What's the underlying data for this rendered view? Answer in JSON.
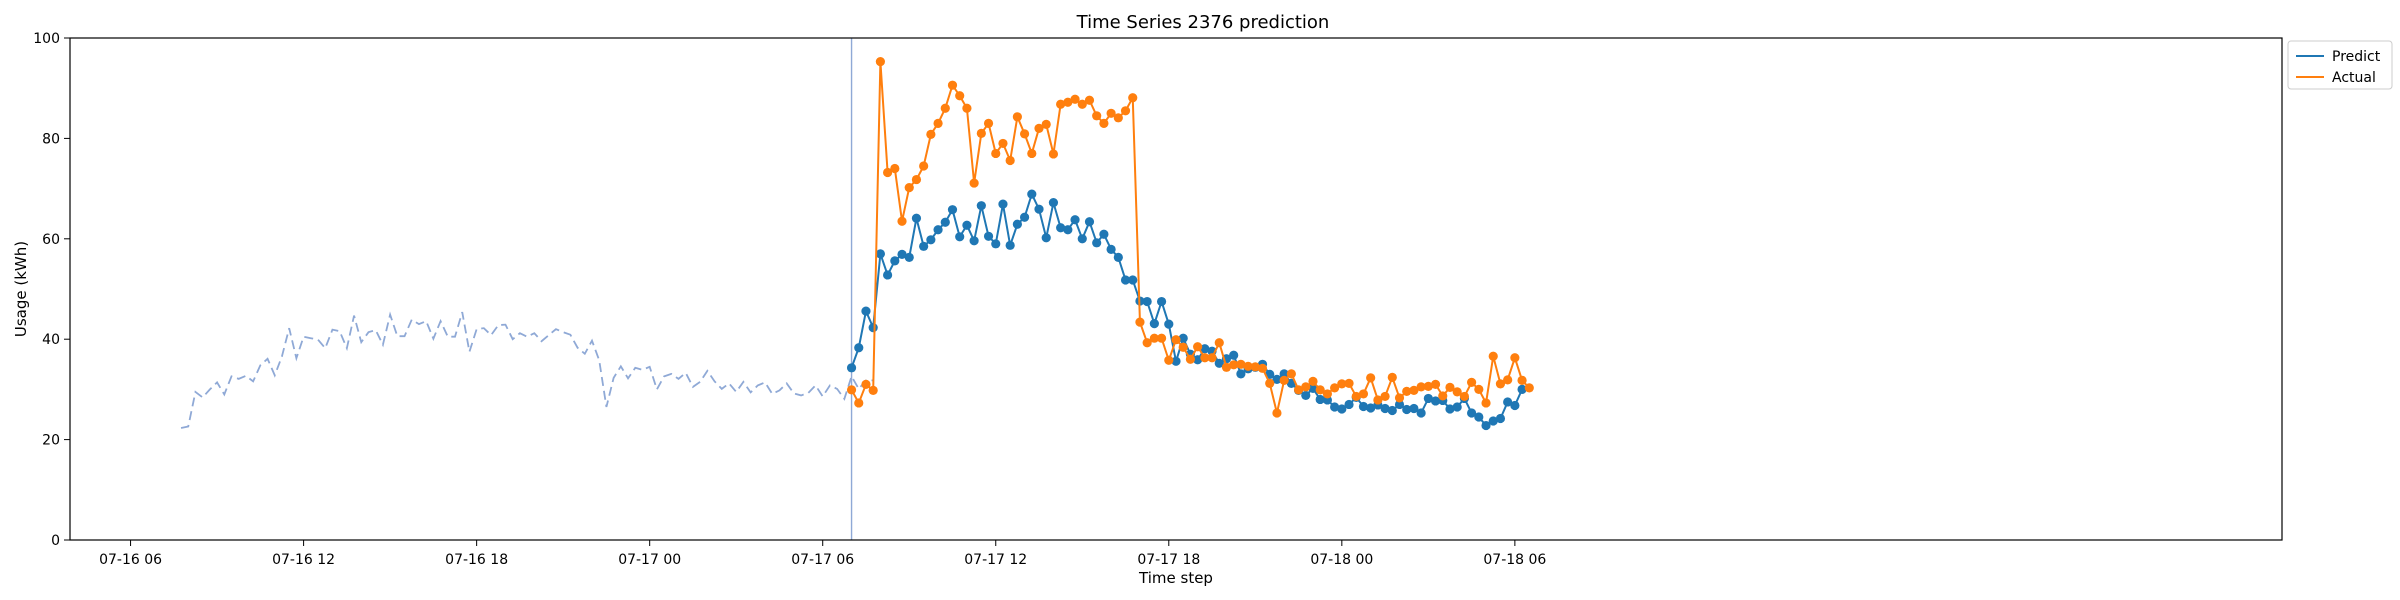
{
  "chart_data": {
    "type": "line",
    "title": "Time Series 2376 prediction",
    "xlabel": "Time step",
    "ylabel": "Usage (kWh)",
    "xlim": [
      -2.1,
      74.6
    ],
    "ylim": [
      0,
      100
    ],
    "x_unit": "hours since 07-16 06:00",
    "yticks": [
      0,
      20,
      40,
      60,
      80,
      100
    ],
    "xticks": [
      {
        "hours": 0,
        "label": "07-16 06"
      },
      {
        "hours": 6,
        "label": "07-16 12"
      },
      {
        "hours": 12,
        "label": "07-16 18"
      },
      {
        "hours": 18,
        "label": "07-17 00"
      },
      {
        "hours": 24,
        "label": "07-17 06"
      },
      {
        "hours": 30,
        "label": "07-17 12"
      },
      {
        "hours": 36,
        "label": "07-17 18"
      },
      {
        "hours": 42,
        "label": "07-18 00"
      },
      {
        "hours": 48,
        "label": "07-18 06"
      }
    ],
    "forecast_start_hours": 25,
    "grid": false,
    "legend": "outside-top-right",
    "colors": {
      "history": "#8fa9d6",
      "predict": "#1f77b4",
      "actual": "#ff7f0e",
      "vline": "#8fa9d6"
    },
    "history": {
      "name": "",
      "x_start": 1.75,
      "x_step": 0.25,
      "values": [
        22.3,
        22.6,
        29.5,
        28.4,
        30.0,
        31.4,
        29.0,
        32.6,
        32.1,
        32.7,
        31.6,
        34.8,
        36.1,
        32.8,
        36.6,
        42.2,
        36.2,
        40.5,
        40.2,
        39.9,
        38.2,
        41.9,
        41.6,
        38.2,
        44.7,
        39.4,
        41.4,
        41.8,
        38.9,
        44.9,
        40.6,
        40.6,
        43.9,
        43.0,
        43.6,
        40.1,
        43.6,
        40.5,
        40.5,
        45.4,
        37.5,
        42.0,
        42.2,
        40.8,
        42.8,
        42.9,
        40.0,
        41.2,
        40.5,
        41.2,
        39.6,
        40.8,
        42.0,
        41.4,
        40.9,
        38.3,
        37.1,
        39.7,
        35.8,
        26.5,
        32.3,
        34.6,
        32.2,
        34.3,
        33.9,
        34.5,
        30.0,
        32.6,
        33.1,
        32.1,
        33.3,
        30.5,
        31.5,
        33.7,
        31.6,
        30.1,
        31.2,
        29.5,
        31.5,
        29.4,
        30.8,
        31.4,
        29.1,
        29.8,
        31.2,
        29.2,
        28.8,
        29.3,
        30.8,
        28.6,
        30.8,
        30.1,
        28.1,
        32.6,
        30.1,
        31.8,
        31.8
      ]
    },
    "series": [
      {
        "name": "Predict",
        "x_start": 25,
        "x_step": 0.25,
        "values": [
          34.3,
          38.3,
          45.6,
          42.3,
          57.0,
          52.8,
          55.6,
          56.9,
          56.3,
          64.1,
          58.5,
          59.8,
          61.8,
          63.3,
          65.8,
          60.4,
          62.7,
          59.6,
          66.6,
          60.5,
          59.0,
          66.9,
          58.7,
          62.9,
          64.3,
          68.9,
          65.9,
          60.2,
          67.2,
          62.2,
          61.8,
          63.8,
          60.0,
          63.4,
          59.2,
          60.9,
          57.9,
          56.3,
          51.8,
          51.8,
          47.6,
          47.5,
          43.1,
          47.5,
          43.0,
          35.6,
          40.2,
          37.0,
          35.9,
          38.1,
          37.6,
          35.2,
          36.1,
          36.8,
          33.1,
          34.1,
          34.4,
          35.0,
          33.0,
          32.0,
          33.1,
          31.2,
          29.8,
          28.8,
          30.2,
          28.0,
          27.9,
          26.5,
          26.1,
          27.0,
          28.4,
          26.6,
          26.3,
          26.9,
          26.2,
          25.8,
          27.0,
          26.0,
          26.2,
          25.3,
          28.2,
          27.7,
          27.8,
          26.1,
          26.5,
          28.2,
          25.3,
          24.5,
          22.8,
          23.7,
          24.2,
          27.5,
          26.8,
          30.0
        ]
      },
      {
        "name": "Actual",
        "x_start": 25,
        "x_step": 0.25,
        "values": [
          29.9,
          27.3,
          31.0,
          29.8,
          95.3,
          73.2,
          74.0,
          63.5,
          70.2,
          71.8,
          74.5,
          80.8,
          83.0,
          86.0,
          90.6,
          88.5,
          86.0,
          71.1,
          81.0,
          83.0,
          77.0,
          79.0,
          75.6,
          84.3,
          80.9,
          77.0,
          82.0,
          82.8,
          76.9,
          86.8,
          87.2,
          87.8,
          86.8,
          87.6,
          84.5,
          83.0,
          85.0,
          84.1,
          85.5,
          88.1,
          43.4,
          39.3,
          40.2,
          40.2,
          35.8,
          39.9,
          38.4,
          36.0,
          38.5,
          36.3,
          36.3,
          39.3,
          34.4,
          34.9,
          35.0,
          34.6,
          34.5,
          34.2,
          31.2,
          25.3,
          31.8,
          33.1,
          29.9,
          30.5,
          31.6,
          29.9,
          29.1,
          30.3,
          31.1,
          31.2,
          28.6,
          29.1,
          32.3,
          27.9,
          28.6,
          32.4,
          28.3,
          29.6,
          29.8,
          30.5,
          30.6,
          31.0,
          28.7,
          30.4,
          29.5,
          28.6,
          31.4,
          30.0,
          27.3,
          36.6,
          31.1,
          31.9,
          36.3,
          31.8,
          30.3
        ]
      }
    ]
  }
}
